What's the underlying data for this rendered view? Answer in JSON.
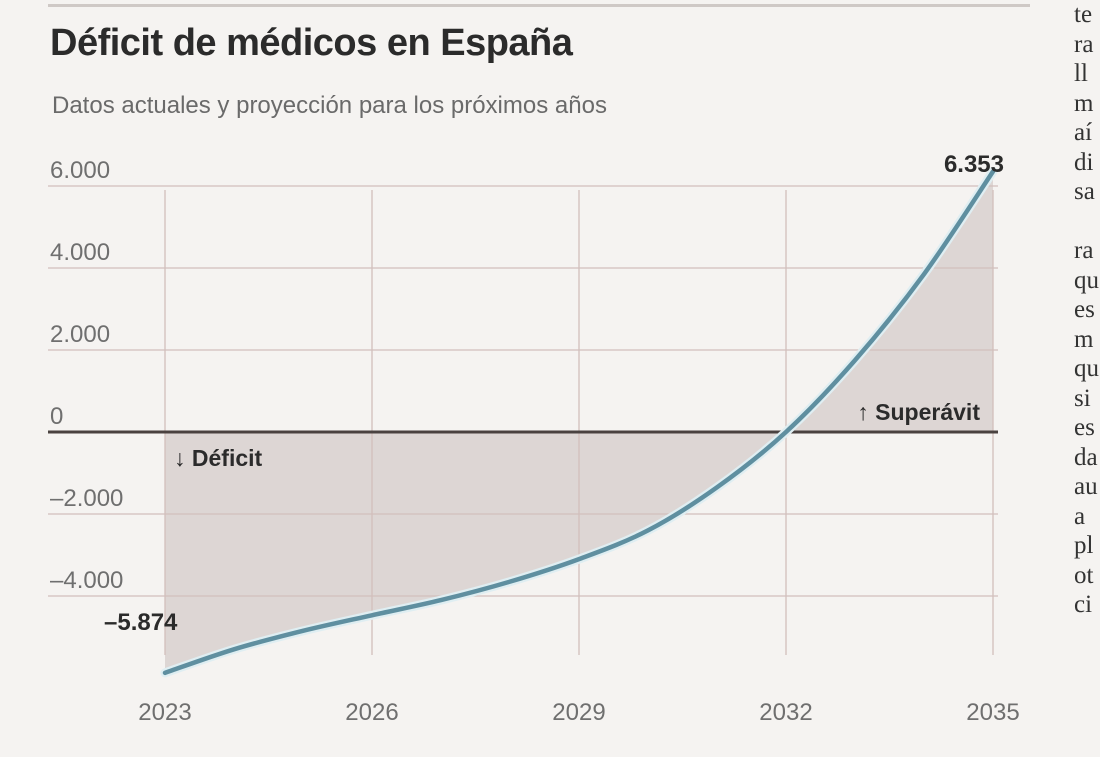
{
  "chart_data": {
    "type": "area",
    "title": "Déficit de médicos en España",
    "subtitle": "Datos actuales y proyección para los próximos años",
    "x": [
      2023,
      2024,
      2025,
      2026,
      2027,
      2028,
      2029,
      2030,
      2031,
      2032,
      2033,
      2034,
      2035
    ],
    "y": [
      -5874,
      -5300,
      -4850,
      -4470,
      -4100,
      -3650,
      -3100,
      -2400,
      -1350,
      0,
      1750,
      3850,
      6353
    ],
    "x_ticks": [
      "2023",
      "2026",
      "2029",
      "2032",
      "2035"
    ],
    "y_ticks": [
      "6.000",
      "4.000",
      "2.000",
      "0",
      "–2.000",
      "–4.000"
    ],
    "y_tick_values": [
      6000,
      4000,
      2000,
      0,
      -2000,
      -4000
    ],
    "ylim": [
      -6000,
      6600
    ],
    "xlim": [
      2023,
      2035
    ],
    "annotations": {
      "start_value": "–5.874",
      "end_value": "6.353",
      "deficit_label": "↓ Déficit",
      "surplus_label": "↑ Superávit"
    },
    "grid": true,
    "colors": {
      "line": "#5f8fa0",
      "area": "#ddd6d4",
      "zero_line": "#4a4240",
      "grid": "#d2bfbc"
    }
  },
  "side_column": {
    "lines": [
      "te",
      "ra",
      "ll",
      "m",
      "aí",
      "di",
      "sa",
      "",
      "ra",
      "qu",
      "es",
      "m",
      "qu",
      "si",
      "es",
      "da",
      "au",
      "a",
      "pl",
      "ot",
      "ci"
    ]
  }
}
